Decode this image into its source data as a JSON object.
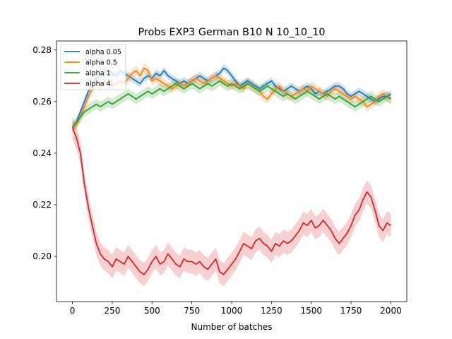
{
  "chart_data": {
    "type": "line",
    "title": "Probs EXP3 German B10 N 10_10_10",
    "xlabel": "Number of batches",
    "ylabel": "",
    "xlim": [
      -100,
      2100
    ],
    "ylim": [
      0.1825,
      0.2835
    ],
    "xticks": [
      0,
      250,
      500,
      750,
      1000,
      1250,
      1500,
      1750,
      2000
    ],
    "xtick_labels": [
      "0",
      "250",
      "500",
      "750",
      "1000",
      "1250",
      "1500",
      "1750",
      "2000"
    ],
    "yticks": [
      0.2,
      0.22,
      0.24,
      0.26,
      0.28
    ],
    "ytick_labels": [
      "0.20",
      "0.22",
      "0.24",
      "0.26",
      "0.28"
    ],
    "grid": false,
    "legend_position": "upper-left",
    "series": [
      {
        "name": "alpha 0.05",
        "color": "#1f77b4",
        "x": [
          0,
          25,
          50,
          75,
          100,
          125,
          150,
          175,
          200,
          225,
          250,
          275,
          300,
          325,
          350,
          375,
          400,
          425,
          450,
          475,
          500,
          525,
          550,
          575,
          600,
          625,
          650,
          675,
          700,
          725,
          750,
          775,
          800,
          825,
          850,
          875,
          900,
          925,
          950,
          975,
          1000,
          1025,
          1050,
          1075,
          1100,
          1125,
          1150,
          1175,
          1200,
          1225,
          1250,
          1275,
          1300,
          1325,
          1350,
          1375,
          1400,
          1425,
          1450,
          1475,
          1500,
          1525,
          1550,
          1575,
          1600,
          1625,
          1650,
          1675,
          1700,
          1725,
          1750,
          1775,
          1800,
          1825,
          1850,
          1875,
          1900,
          1925,
          1950,
          1975,
          2000
        ],
        "y": [
          0.25,
          0.252,
          0.256,
          0.26,
          0.264,
          0.267,
          0.269,
          0.27,
          0.271,
          0.272,
          0.271,
          0.27,
          0.272,
          0.271,
          0.27,
          0.269,
          0.268,
          0.267,
          0.269,
          0.27,
          0.269,
          0.271,
          0.27,
          0.272,
          0.27,
          0.269,
          0.268,
          0.267,
          0.268,
          0.267,
          0.268,
          0.269,
          0.27,
          0.269,
          0.268,
          0.269,
          0.27,
          0.271,
          0.273,
          0.272,
          0.27,
          0.268,
          0.266,
          0.267,
          0.268,
          0.267,
          0.266,
          0.265,
          0.266,
          0.267,
          0.268,
          0.266,
          0.265,
          0.264,
          0.265,
          0.266,
          0.265,
          0.264,
          0.265,
          0.266,
          0.265,
          0.263,
          0.264,
          0.263,
          0.264,
          0.265,
          0.266,
          0.266,
          0.265,
          0.263,
          0.262,
          0.263,
          0.264,
          0.263,
          0.262,
          0.261,
          0.26,
          0.261,
          0.262,
          0.262,
          0.263
        ],
        "band": 0.0015
      },
      {
        "name": "alpha 0.5",
        "color": "#ff7f0e",
        "x": [
          0,
          25,
          50,
          75,
          100,
          125,
          150,
          175,
          200,
          225,
          250,
          275,
          300,
          325,
          350,
          375,
          400,
          425,
          450,
          475,
          500,
          525,
          550,
          575,
          600,
          625,
          650,
          675,
          700,
          725,
          750,
          775,
          800,
          825,
          850,
          875,
          900,
          925,
          950,
          975,
          1000,
          1025,
          1050,
          1075,
          1100,
          1125,
          1150,
          1175,
          1200,
          1225,
          1250,
          1275,
          1300,
          1325,
          1350,
          1375,
          1400,
          1425,
          1450,
          1475,
          1500,
          1525,
          1550,
          1575,
          1600,
          1625,
          1650,
          1675,
          1700,
          1725,
          1750,
          1775,
          1800,
          1825,
          1850,
          1875,
          1900,
          1925,
          1950,
          1975,
          2000
        ],
        "y": [
          0.25,
          0.251,
          0.254,
          0.258,
          0.262,
          0.265,
          0.267,
          0.266,
          0.268,
          0.267,
          0.266,
          0.267,
          0.268,
          0.267,
          0.269,
          0.271,
          0.272,
          0.27,
          0.273,
          0.272,
          0.268,
          0.269,
          0.268,
          0.267,
          0.266,
          0.265,
          0.266,
          0.267,
          0.266,
          0.267,
          0.268,
          0.269,
          0.268,
          0.267,
          0.268,
          0.269,
          0.27,
          0.269,
          0.268,
          0.267,
          0.266,
          0.267,
          0.266,
          0.265,
          0.267,
          0.266,
          0.265,
          0.264,
          0.262,
          0.261,
          0.263,
          0.265,
          0.266,
          0.264,
          0.263,
          0.262,
          0.263,
          0.264,
          0.265,
          0.264,
          0.266,
          0.265,
          0.264,
          0.263,
          0.262,
          0.264,
          0.265,
          0.264,
          0.263,
          0.262,
          0.261,
          0.262,
          0.261,
          0.26,
          0.258,
          0.259,
          0.26,
          0.262,
          0.263,
          0.262,
          0.261
        ],
        "band": 0.0018
      },
      {
        "name": "alpha 1",
        "color": "#2ca02c",
        "x": [
          0,
          25,
          50,
          75,
          100,
          125,
          150,
          175,
          200,
          225,
          250,
          275,
          300,
          325,
          350,
          375,
          400,
          425,
          450,
          475,
          500,
          525,
          550,
          575,
          600,
          625,
          650,
          675,
          700,
          725,
          750,
          775,
          800,
          825,
          850,
          875,
          900,
          925,
          950,
          975,
          1000,
          1025,
          1050,
          1075,
          1100,
          1125,
          1150,
          1175,
          1200,
          1225,
          1250,
          1275,
          1300,
          1325,
          1350,
          1375,
          1400,
          1425,
          1450,
          1475,
          1500,
          1525,
          1550,
          1575,
          1600,
          1625,
          1650,
          1675,
          1700,
          1725,
          1750,
          1775,
          1800,
          1825,
          1850,
          1875,
          1900,
          1925,
          1950,
          1975,
          2000
        ],
        "y": [
          0.25,
          0.252,
          0.254,
          0.256,
          0.257,
          0.258,
          0.259,
          0.258,
          0.259,
          0.26,
          0.259,
          0.26,
          0.261,
          0.262,
          0.263,
          0.262,
          0.261,
          0.262,
          0.263,
          0.264,
          0.263,
          0.264,
          0.265,
          0.264,
          0.265,
          0.266,
          0.267,
          0.266,
          0.265,
          0.266,
          0.267,
          0.266,
          0.265,
          0.266,
          0.267,
          0.266,
          0.267,
          0.268,
          0.267,
          0.266,
          0.267,
          0.266,
          0.265,
          0.266,
          0.267,
          0.266,
          0.265,
          0.264,
          0.265,
          0.266,
          0.265,
          0.264,
          0.263,
          0.262,
          0.263,
          0.262,
          0.261,
          0.262,
          0.263,
          0.264,
          0.263,
          0.262,
          0.261,
          0.262,
          0.263,
          0.262,
          0.261,
          0.262,
          0.261,
          0.26,
          0.259,
          0.258,
          0.259,
          0.26,
          0.261,
          0.262,
          0.261,
          0.26,
          0.261,
          0.262,
          0.261
        ],
        "band": 0.002
      },
      {
        "name": "alpha 4",
        "color": "#d62728",
        "x": [
          0,
          25,
          50,
          75,
          100,
          125,
          150,
          175,
          200,
          225,
          250,
          275,
          300,
          325,
          350,
          375,
          400,
          425,
          450,
          475,
          500,
          525,
          550,
          575,
          600,
          625,
          650,
          675,
          700,
          725,
          750,
          775,
          800,
          825,
          850,
          875,
          900,
          925,
          950,
          975,
          1000,
          1025,
          1050,
          1075,
          1100,
          1125,
          1150,
          1175,
          1200,
          1225,
          1250,
          1275,
          1300,
          1325,
          1350,
          1375,
          1400,
          1425,
          1450,
          1475,
          1500,
          1525,
          1550,
          1575,
          1600,
          1625,
          1650,
          1675,
          1700,
          1725,
          1750,
          1775,
          1800,
          1825,
          1850,
          1875,
          1900,
          1925,
          1950,
          1975,
          2000
        ],
        "y": [
          0.25,
          0.246,
          0.24,
          0.228,
          0.219,
          0.212,
          0.205,
          0.201,
          0.199,
          0.198,
          0.196,
          0.199,
          0.198,
          0.197,
          0.2,
          0.198,
          0.196,
          0.194,
          0.193,
          0.195,
          0.198,
          0.2,
          0.197,
          0.198,
          0.201,
          0.199,
          0.197,
          0.196,
          0.199,
          0.198,
          0.198,
          0.197,
          0.198,
          0.196,
          0.195,
          0.197,
          0.199,
          0.194,
          0.193,
          0.195,
          0.197,
          0.199,
          0.202,
          0.205,
          0.204,
          0.203,
          0.206,
          0.207,
          0.205,
          0.204,
          0.202,
          0.205,
          0.204,
          0.206,
          0.205,
          0.206,
          0.208,
          0.21,
          0.213,
          0.212,
          0.214,
          0.211,
          0.212,
          0.214,
          0.212,
          0.21,
          0.207,
          0.205,
          0.207,
          0.209,
          0.212,
          0.216,
          0.218,
          0.222,
          0.225,
          0.223,
          0.218,
          0.212,
          0.21,
          0.213,
          0.212
        ],
        "band": 0.0045
      }
    ]
  }
}
